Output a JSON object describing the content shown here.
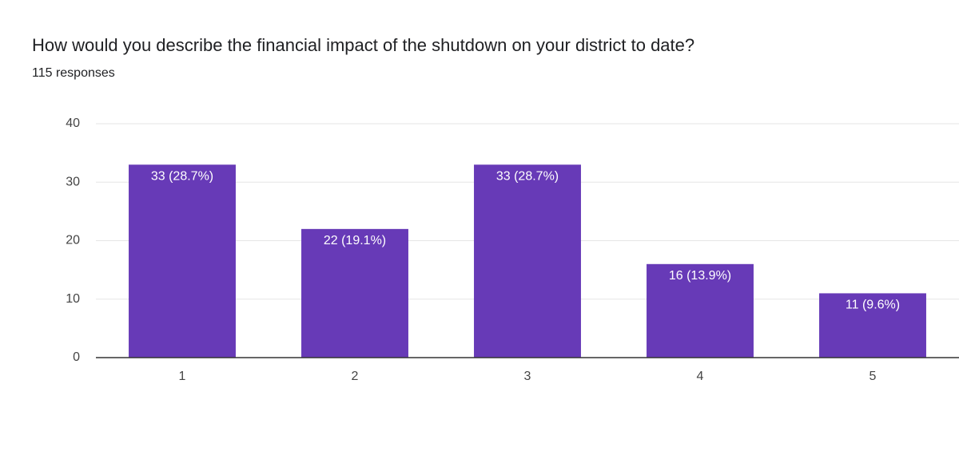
{
  "title": "How would you describe the financial impact of the shutdown on your district to date?",
  "subtitle": "115 responses",
  "chart_data": {
    "type": "bar",
    "categories": [
      "1",
      "2",
      "3",
      "4",
      "5"
    ],
    "values": [
      33,
      22,
      33,
      16,
      11
    ],
    "value_labels": [
      "33 (28.7%)",
      "22 (19.1%)",
      "33 (28.7%)",
      "16 (13.9%)",
      "11 (9.6%)"
    ],
    "color": "#673ab7",
    "ylim": [
      0,
      40
    ],
    "yticks": [
      0,
      10,
      20,
      30,
      40
    ],
    "grid": true
  }
}
